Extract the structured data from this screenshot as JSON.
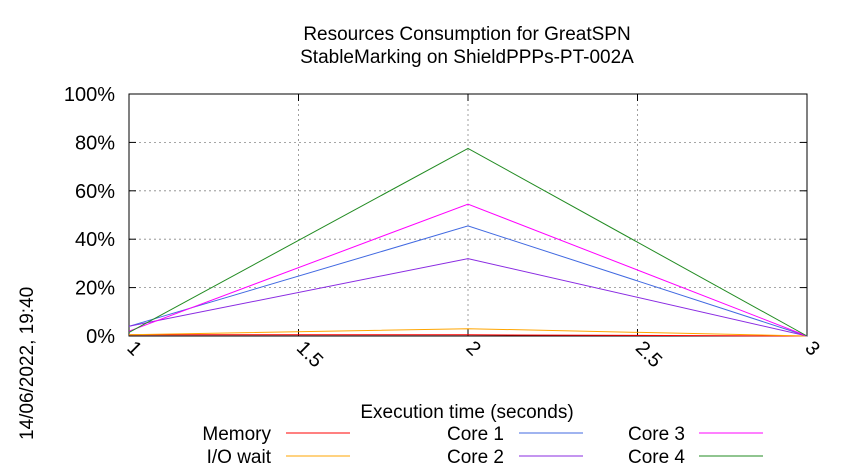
{
  "chart_data": {
    "type": "line",
    "title_lines": [
      "Resources Consumption for GreatSPN",
      "StableMarking on ShieldPPPs-PT-002A"
    ],
    "xlabel": "Execution time (seconds)",
    "ylabel": "",
    "xlim": [
      1,
      3
    ],
    "ylim": [
      0,
      100
    ],
    "x_ticks": [
      1,
      1.5,
      2,
      2.5,
      3
    ],
    "x_tick_labels": [
      "1",
      "1.5",
      "2",
      "2.5",
      "3"
    ],
    "y_ticks": [
      0,
      20,
      40,
      60,
      80,
      100
    ],
    "y_tick_labels": [
      "0%",
      "20%",
      "40%",
      "60%",
      "80%",
      "100%"
    ],
    "grid": true,
    "legend_placement": "bottom",
    "x": [
      1,
      2,
      3
    ],
    "series": [
      {
        "name": "Memory",
        "color": "#ff0000",
        "values": [
          0.5,
          0.5,
          0
        ]
      },
      {
        "name": "I/O wait",
        "color": "#ffa500",
        "values": [
          0.5,
          3,
          0
        ]
      },
      {
        "name": "Core 1",
        "color": "#4169e1",
        "values": [
          4,
          45.5,
          0
        ]
      },
      {
        "name": "Core 2",
        "color": "#8a2be2",
        "values": [
          4,
          32,
          0
        ]
      },
      {
        "name": "Core 3",
        "color": "#ff00ff",
        "values": [
          2,
          54.5,
          0
        ]
      },
      {
        "name": "Core 4",
        "color": "#228b22",
        "values": [
          1.5,
          77.5,
          0
        ]
      }
    ]
  },
  "timestamp": "14/06/2022, 19:40"
}
